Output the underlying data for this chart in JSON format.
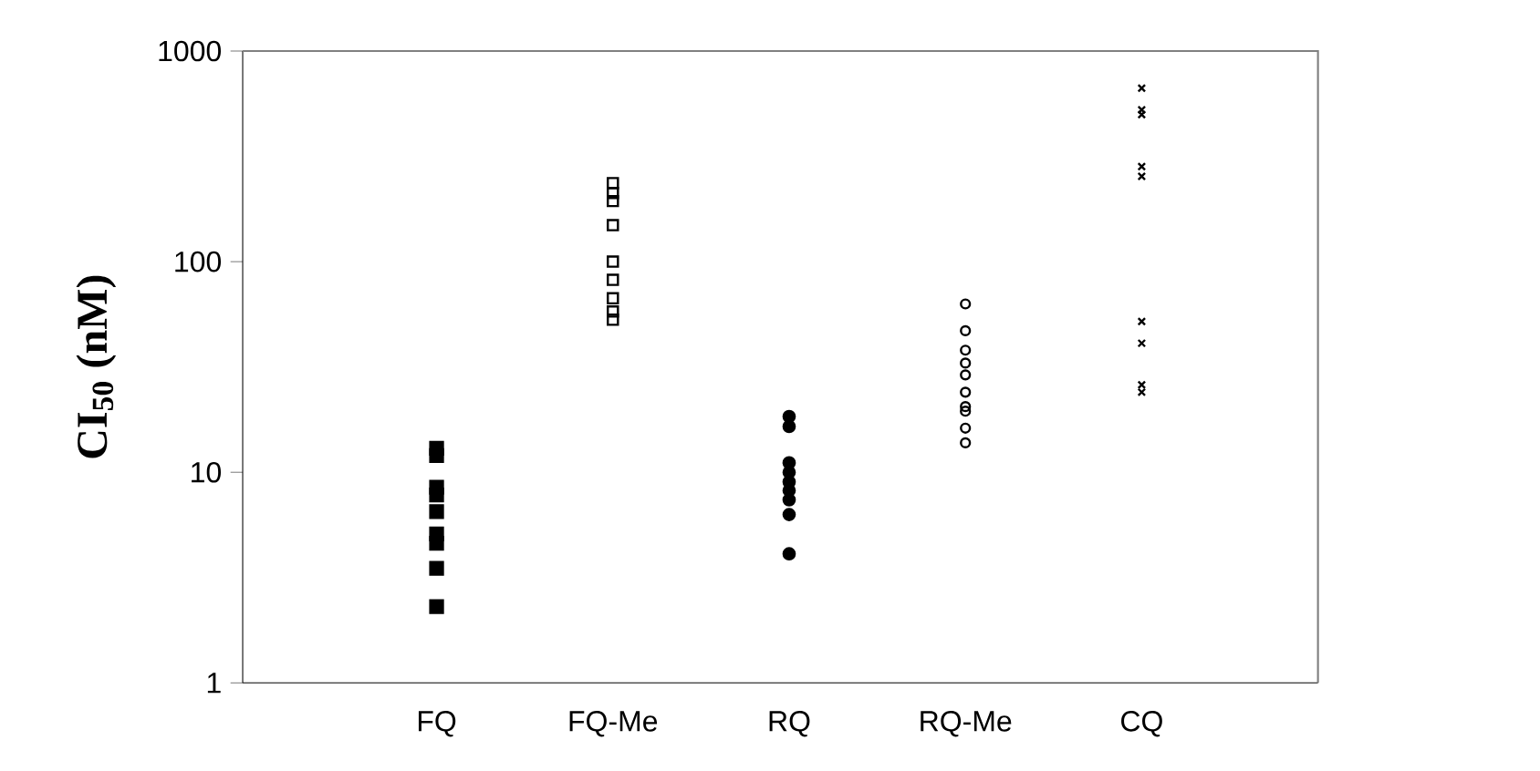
{
  "chart_data": {
    "type": "scatter",
    "ylabel": "CI$_{50}$ (nM)",
    "categories": [
      "FQ",
      "FQ-Me",
      "RQ",
      "RQ-Me",
      "CQ"
    ],
    "log": "y",
    "ylim": [
      1,
      1000
    ],
    "yticks": [
      1,
      10,
      100,
      1000
    ],
    "grid": false,
    "series": [
      {
        "color": "#000000",
        "marker": "square",
        "x": [
          "FQ",
          "FQ",
          "FQ",
          "FQ",
          "FQ",
          "FQ",
          "FQ",
          "FQ",
          "FQ",
          "FQ"
        ],
        "values": [
          13,
          12,
          8.5,
          7.8,
          null,
          6.5,
          5.1,
          4.6,
          3.5,
          2.3
        ]
      },
      {
        "color": "#000000",
        "marker": "square",
        "x": [
          "FQ-Me",
          "FQ-Me",
          "FQ-Me",
          "FQ-Me",
          "FQ-Me",
          "FQ-Me",
          "FQ-Me",
          "FQ-Me",
          "FQ-Me"
        ],
        "values": [
          236,
          212,
          194,
          149,
          100,
          82,
          67,
          58,
          53
        ]
      },
      {
        "color": "#000000",
        "marker": "circle",
        "x": [
          "RQ",
          "RQ",
          "RQ",
          "RQ",
          "RQ",
          "RQ",
          "RQ",
          "RQ",
          "RQ",
          "RQ"
        ],
        "values": [
          18.4,
          16.5,
          11.1,
          10,
          9,
          8.2,
          7.4,
          null,
          6.3,
          4.1
        ]
      },
      {
        "color": "#000000",
        "marker": "circle",
        "x": [
          "RQ-Me",
          "RQ-Me",
          "RQ-Me",
          "RQ-Me",
          "RQ-Me",
          "RQ-Me",
          "RQ-Me",
          "RQ-Me",
          "RQ-Me",
          "RQ-Me"
        ],
        "values": [
          63,
          47,
          38,
          33,
          29,
          24,
          20.5,
          19.5,
          16.2,
          13.8
        ]
      },
      {
        "color": "#000000",
        "marker": "cross",
        "x": [
          "CQ",
          "CQ",
          "CQ",
          "CQ",
          "CQ",
          "CQ",
          "CQ",
          "CQ",
          "CQ"
        ],
        "values": [
          666,
          526,
          499,
          283,
          254,
          52,
          41,
          26,
          24
        ]
      }
    ]
  }
}
